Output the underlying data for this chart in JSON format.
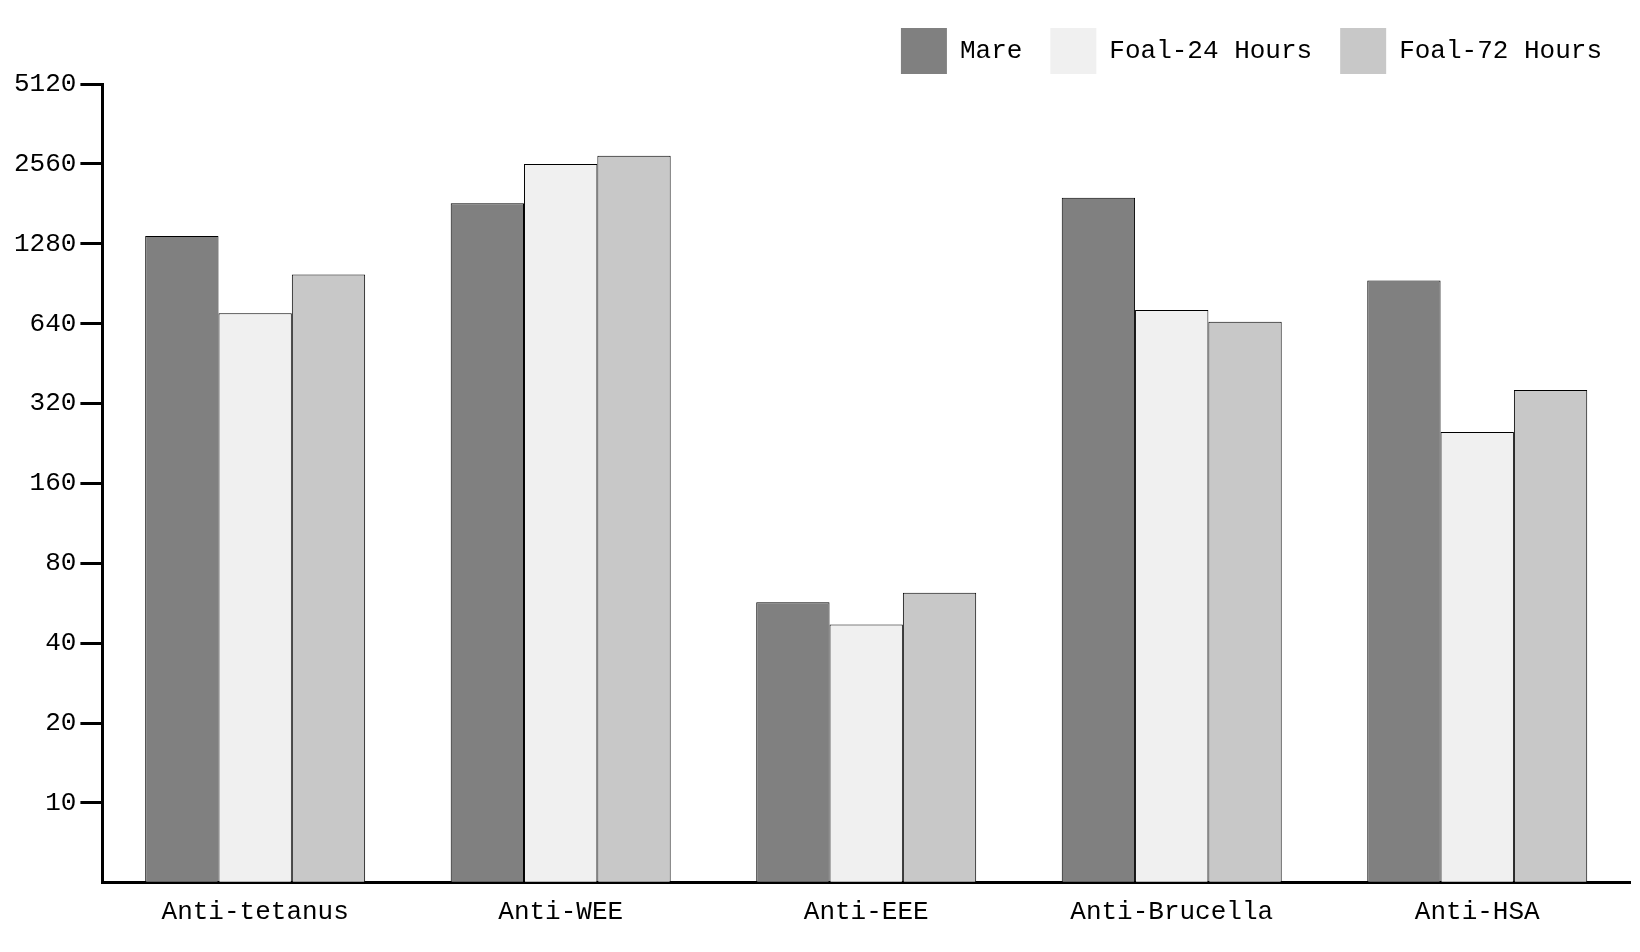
{
  "chart_data": {
    "type": "bar",
    "categories": [
      "Anti-tetanus",
      "Anti-WEE",
      "Anti-EEE",
      "Anti-Brucella",
      "Anti-HSA"
    ],
    "series": [
      {
        "name": "Mare",
        "color": "#808080",
        "values": [
          1370,
          1820,
          57,
          1910,
          930
        ]
      },
      {
        "name": "Foal-24 Hours",
        "color": "#f0f0f0",
        "values": [
          700,
          2560,
          47,
          720,
          250
        ]
      },
      {
        "name": "Foal-72 Hours",
        "color": "#c8c8c8",
        "values": [
          980,
          2750,
          62,
          650,
          360
        ]
      }
    ],
    "log": true,
    "ylim": [
      5,
      5120
    ],
    "yticks": [
      10,
      20,
      40,
      80,
      160,
      320,
      640,
      1280,
      2560,
      5120
    ],
    "grid": false,
    "legend": "top right"
  }
}
